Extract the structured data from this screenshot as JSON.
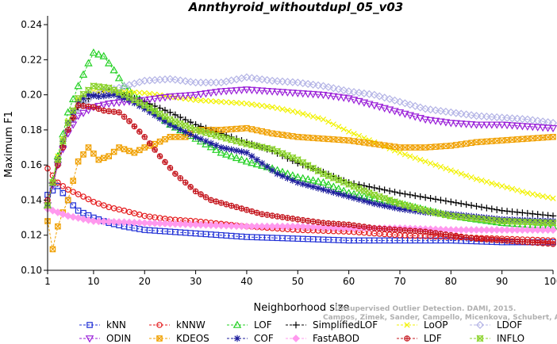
{
  "chart_data": {
    "type": "line",
    "title": "Annthyroid_withoutdupl_05_v03",
    "xlabel": "Neighborhood size",
    "ylabel": "Maximum F1",
    "xlim": [
      1,
      100
    ],
    "ylim": [
      0.1,
      0.245
    ],
    "x_ticks": [
      "1",
      "10",
      "20",
      "30",
      "40",
      "50",
      "60",
      "70",
      "80",
      "90",
      "100"
    ],
    "y_ticks": [
      "0.10",
      "0.12",
      "0.14",
      "0.16",
      "0.18",
      "0.20",
      "0.22",
      "0.24"
    ],
    "grid": false,
    "legend_position": "bottom",
    "watermark": [
      "Unsupervised Outlier Detection. DAMI, 2015.",
      "Campos, Zimek, Sander, Campello, Micenkova, Schubert, Assent, Houle"
    ],
    "series": [
      {
        "name": "kNN",
        "color": "#1f2fd6",
        "marker": "square",
        "points": [
          [
            1,
            0.143
          ],
          [
            3,
            0.148
          ],
          [
            5,
            0.14
          ],
          [
            7,
            0.134
          ],
          [
            10,
            0.13
          ],
          [
            13,
            0.127
          ],
          [
            16,
            0.125
          ],
          [
            20,
            0.123
          ],
          [
            25,
            0.122
          ],
          [
            30,
            0.121
          ],
          [
            40,
            0.119
          ],
          [
            50,
            0.118
          ],
          [
            60,
            0.117
          ],
          [
            70,
            0.117
          ],
          [
            80,
            0.117
          ],
          [
            90,
            0.116
          ],
          [
            100,
            0.116
          ]
        ]
      },
      {
        "name": "kNNW",
        "color": "#e41a1c",
        "marker": "circle",
        "points": [
          [
            1,
            0.158
          ],
          [
            3,
            0.15
          ],
          [
            5,
            0.146
          ],
          [
            8,
            0.142
          ],
          [
            10,
            0.139
          ],
          [
            13,
            0.136
          ],
          [
            16,
            0.134
          ],
          [
            20,
            0.131
          ],
          [
            25,
            0.129
          ],
          [
            30,
            0.128
          ],
          [
            40,
            0.125
          ],
          [
            50,
            0.123
          ],
          [
            60,
            0.122
          ],
          [
            70,
            0.12
          ],
          [
            80,
            0.119
          ],
          [
            90,
            0.118
          ],
          [
            100,
            0.117
          ]
        ]
      },
      {
        "name": "LOF",
        "color": "#22d022",
        "marker": "triangle-up",
        "points": [
          [
            1,
            0.137
          ],
          [
            3,
            0.165
          ],
          [
            5,
            0.19
          ],
          [
            7,
            0.205
          ],
          [
            9,
            0.218
          ],
          [
            10,
            0.224
          ],
          [
            12,
            0.222
          ],
          [
            14,
            0.214
          ],
          [
            16,
            0.205
          ],
          [
            20,
            0.195
          ],
          [
            25,
            0.183
          ],
          [
            30,
            0.175
          ],
          [
            35,
            0.167
          ],
          [
            40,
            0.162
          ],
          [
            45,
            0.158
          ],
          [
            50,
            0.153
          ],
          [
            55,
            0.15
          ],
          [
            60,
            0.144
          ],
          [
            70,
            0.138
          ],
          [
            80,
            0.131
          ],
          [
            90,
            0.127
          ],
          [
            100,
            0.125
          ]
        ]
      },
      {
        "name": "SimplifiedLOF",
        "color": "#000000",
        "marker": "plus",
        "points": [
          [
            1,
            0.135
          ],
          [
            3,
            0.162
          ],
          [
            5,
            0.18
          ],
          [
            7,
            0.193
          ],
          [
            10,
            0.2
          ],
          [
            12,
            0.202
          ],
          [
            15,
            0.201
          ],
          [
            20,
            0.196
          ],
          [
            25,
            0.19
          ],
          [
            30,
            0.183
          ],
          [
            35,
            0.178
          ],
          [
            40,
            0.173
          ],
          [
            45,
            0.168
          ],
          [
            50,
            0.161
          ],
          [
            55,
            0.156
          ],
          [
            60,
            0.15
          ],
          [
            65,
            0.147
          ],
          [
            70,
            0.144
          ],
          [
            80,
            0.139
          ],
          [
            90,
            0.134
          ],
          [
            100,
            0.131
          ]
        ]
      },
      {
        "name": "LoOP",
        "color": "#f2f200",
        "marker": "x",
        "points": [
          [
            1,
            0.136
          ],
          [
            3,
            0.165
          ],
          [
            5,
            0.185
          ],
          [
            7,
            0.197
          ],
          [
            10,
            0.202
          ],
          [
            15,
            0.202
          ],
          [
            20,
            0.201
          ],
          [
            25,
            0.199
          ],
          [
            30,
            0.197
          ],
          [
            35,
            0.196
          ],
          [
            40,
            0.195
          ],
          [
            45,
            0.193
          ],
          [
            50,
            0.19
          ],
          [
            55,
            0.186
          ],
          [
            60,
            0.179
          ],
          [
            65,
            0.173
          ],
          [
            70,
            0.167
          ],
          [
            75,
            0.162
          ],
          [
            80,
            0.157
          ],
          [
            85,
            0.152
          ],
          [
            90,
            0.148
          ],
          [
            95,
            0.144
          ],
          [
            100,
            0.141
          ]
        ]
      },
      {
        "name": "LDOF",
        "color": "#b4b4e6",
        "marker": "diamond",
        "points": [
          [
            1,
            0.136
          ],
          [
            3,
            0.16
          ],
          [
            5,
            0.18
          ],
          [
            7,
            0.192
          ],
          [
            10,
            0.2
          ],
          [
            15,
            0.204
          ],
          [
            20,
            0.208
          ],
          [
            25,
            0.209
          ],
          [
            30,
            0.207
          ],
          [
            35,
            0.207
          ],
          [
            40,
            0.21
          ],
          [
            45,
            0.208
          ],
          [
            50,
            0.207
          ],
          [
            55,
            0.205
          ],
          [
            60,
            0.202
          ],
          [
            65,
            0.2
          ],
          [
            70,
            0.196
          ],
          [
            75,
            0.192
          ],
          [
            80,
            0.19
          ],
          [
            85,
            0.188
          ],
          [
            90,
            0.187
          ],
          [
            95,
            0.186
          ],
          [
            100,
            0.184
          ]
        ]
      },
      {
        "name": "ODIN",
        "color": "#9a20d8",
        "marker": "triangle-down",
        "points": [
          [
            1,
            0.137
          ],
          [
            3,
            0.16
          ],
          [
            5,
            0.178
          ],
          [
            7,
            0.188
          ],
          [
            10,
            0.193
          ],
          [
            13,
            0.195
          ],
          [
            16,
            0.196
          ],
          [
            20,
            0.197
          ],
          [
            25,
            0.199
          ],
          [
            30,
            0.2
          ],
          [
            35,
            0.202
          ],
          [
            40,
            0.203
          ],
          [
            45,
            0.202
          ],
          [
            50,
            0.201
          ],
          [
            55,
            0.2
          ],
          [
            60,
            0.198
          ],
          [
            65,
            0.194
          ],
          [
            70,
            0.19
          ],
          [
            75,
            0.186
          ],
          [
            80,
            0.184
          ],
          [
            85,
            0.183
          ],
          [
            90,
            0.183
          ],
          [
            95,
            0.182
          ],
          [
            100,
            0.181
          ]
        ]
      },
      {
        "name": "KDEOS",
        "color": "#f0a000",
        "marker": "square-cross",
        "points": [
          [
            1,
            0.128
          ],
          [
            2,
            0.112
          ],
          [
            3,
            0.125
          ],
          [
            4,
            0.133
          ],
          [
            5,
            0.14
          ],
          [
            7,
            0.162
          ],
          [
            9,
            0.17
          ],
          [
            11,
            0.163
          ],
          [
            13,
            0.165
          ],
          [
            15,
            0.17
          ],
          [
            18,
            0.167
          ],
          [
            20,
            0.17
          ],
          [
            22,
            0.172
          ],
          [
            25,
            0.176
          ],
          [
            28,
            0.176
          ],
          [
            30,
            0.18
          ],
          [
            35,
            0.18
          ],
          [
            40,
            0.181
          ],
          [
            45,
            0.178
          ],
          [
            50,
            0.176
          ],
          [
            55,
            0.175
          ],
          [
            60,
            0.174
          ],
          [
            65,
            0.172
          ],
          [
            70,
            0.17
          ],
          [
            75,
            0.17
          ],
          [
            80,
            0.171
          ],
          [
            85,
            0.173
          ],
          [
            90,
            0.174
          ],
          [
            95,
            0.175
          ],
          [
            100,
            0.176
          ]
        ]
      },
      {
        "name": "COF",
        "color": "#1c1c9c",
        "marker": "asterisk",
        "points": [
          [
            1,
            0.136
          ],
          [
            3,
            0.163
          ],
          [
            5,
            0.184
          ],
          [
            7,
            0.196
          ],
          [
            9,
            0.2
          ],
          [
            11,
            0.199
          ],
          [
            14,
            0.2
          ],
          [
            17,
            0.197
          ],
          [
            20,
            0.192
          ],
          [
            25,
            0.183
          ],
          [
            30,
            0.176
          ],
          [
            35,
            0.17
          ],
          [
            40,
            0.167
          ],
          [
            43,
            0.161
          ],
          [
            46,
            0.155
          ],
          [
            50,
            0.15
          ],
          [
            55,
            0.146
          ],
          [
            60,
            0.142
          ],
          [
            65,
            0.138
          ],
          [
            70,
            0.135
          ],
          [
            75,
            0.133
          ],
          [
            80,
            0.132
          ],
          [
            90,
            0.129
          ],
          [
            100,
            0.128
          ]
        ]
      },
      {
        "name": "FastABOD",
        "color": "#ff99ee",
        "marker": "diamond-filled",
        "points": [
          [
            1,
            0.135
          ],
          [
            3,
            0.133
          ],
          [
            5,
            0.131
          ],
          [
            10,
            0.128
          ],
          [
            20,
            0.127
          ],
          [
            30,
            0.126
          ],
          [
            40,
            0.125
          ],
          [
            50,
            0.125
          ],
          [
            60,
            0.124
          ],
          [
            70,
            0.124
          ],
          [
            80,
            0.123
          ],
          [
            90,
            0.123
          ],
          [
            100,
            0.123
          ]
        ]
      },
      {
        "name": "LDF",
        "color": "#c4141c",
        "marker": "circle-plus",
        "points": [
          [
            1,
            0.14
          ],
          [
            3,
            0.16
          ],
          [
            5,
            0.18
          ],
          [
            7,
            0.194
          ],
          [
            10,
            0.193
          ],
          [
            12,
            0.191
          ],
          [
            15,
            0.19
          ],
          [
            17,
            0.185
          ],
          [
            20,
            0.176
          ],
          [
            23,
            0.165
          ],
          [
            26,
            0.155
          ],
          [
            30,
            0.145
          ],
          [
            33,
            0.14
          ],
          [
            38,
            0.136
          ],
          [
            43,
            0.132
          ],
          [
            50,
            0.129
          ],
          [
            55,
            0.127
          ],
          [
            60,
            0.126
          ],
          [
            65,
            0.124
          ],
          [
            70,
            0.123
          ],
          [
            75,
            0.122
          ],
          [
            80,
            0.12
          ],
          [
            85,
            0.118
          ],
          [
            90,
            0.117
          ],
          [
            95,
            0.116
          ],
          [
            100,
            0.115
          ]
        ]
      },
      {
        "name": "INFLO",
        "color": "#8ad22a",
        "marker": "hourglass",
        "points": [
          [
            1,
            0.137
          ],
          [
            3,
            0.163
          ],
          [
            5,
            0.184
          ],
          [
            7,
            0.198
          ],
          [
            10,
            0.205
          ],
          [
            13,
            0.204
          ],
          [
            16,
            0.2
          ],
          [
            20,
            0.194
          ],
          [
            25,
            0.186
          ],
          [
            30,
            0.18
          ],
          [
            35,
            0.176
          ],
          [
            40,
            0.172
          ],
          [
            45,
            0.169
          ],
          [
            50,
            0.163
          ],
          [
            55,
            0.155
          ],
          [
            60,
            0.149
          ],
          [
            65,
            0.143
          ],
          [
            70,
            0.138
          ],
          [
            75,
            0.134
          ],
          [
            80,
            0.131
          ],
          [
            90,
            0.128
          ],
          [
            100,
            0.127
          ]
        ]
      }
    ]
  }
}
